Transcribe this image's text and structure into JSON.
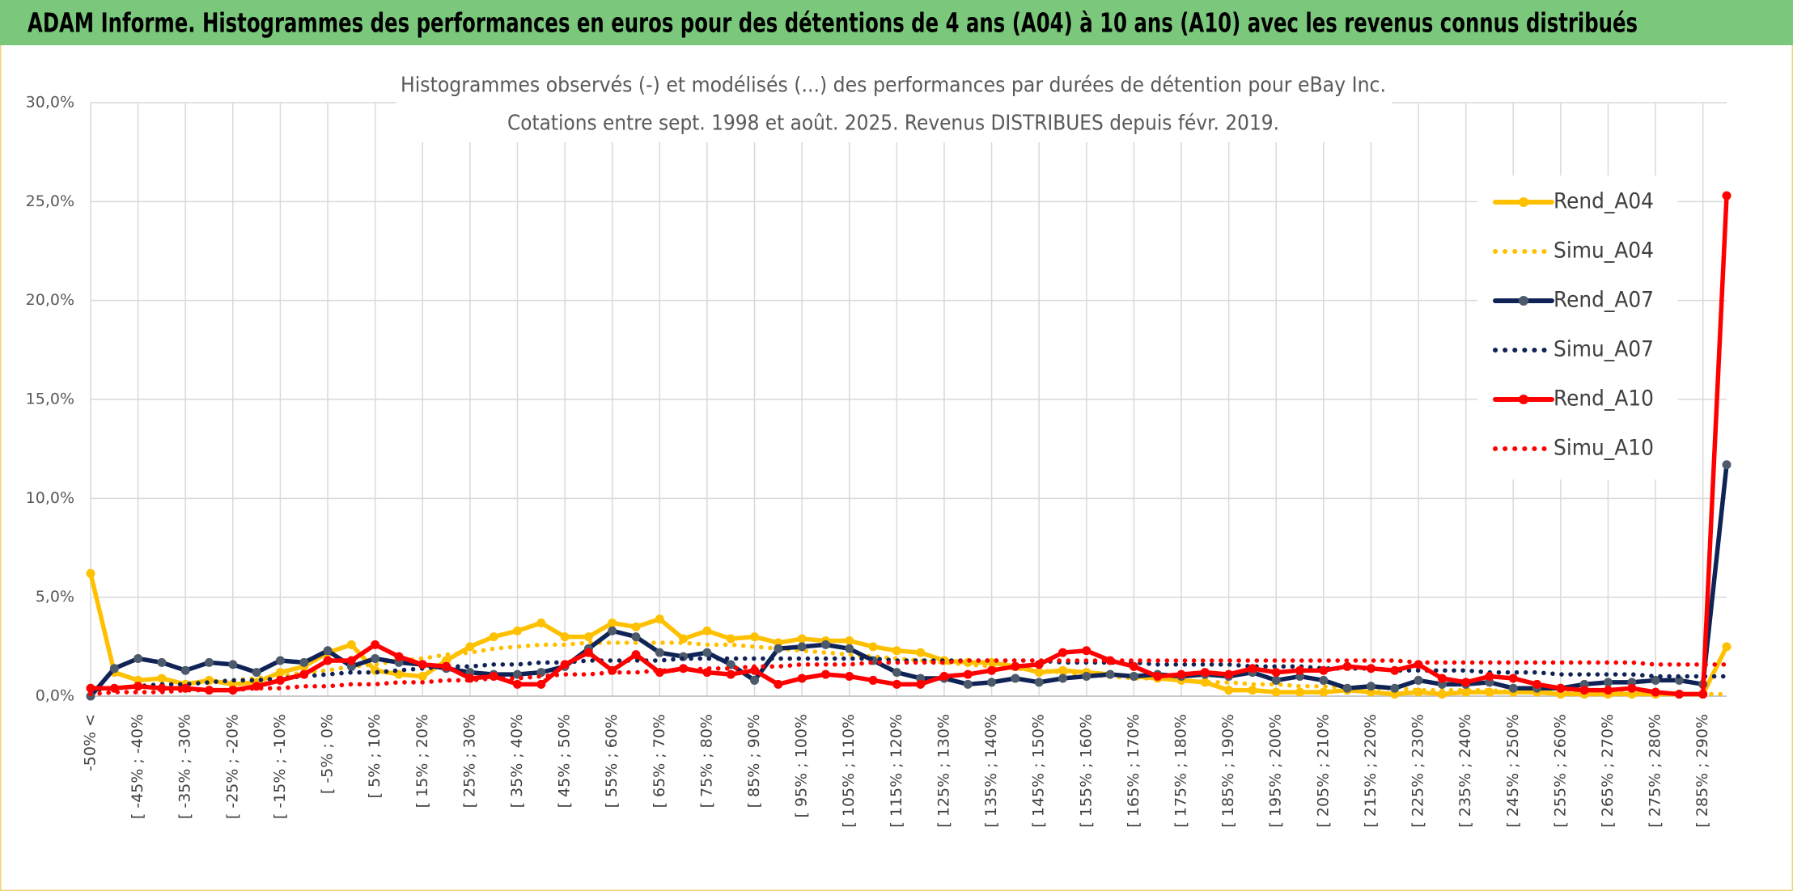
{
  "header": {
    "title": "ADAM Informe. Histogrammes des performances en euros pour des détentions de 4 ans (A04) à 10 ans (A10) avec les revenus connus distribués"
  },
  "chart_data": {
    "type": "line",
    "title": "Histogrammes observés (-) et modélisés (...) des performances par durées de détention pour eBay Inc.",
    "subtitle": "Cotations entre sept. 1998 et août. 2025. Revenus DISTRIBUES depuis févr. 2019.",
    "categories": [
      "-50% <",
      null,
      "[ -45% ; -40%",
      null,
      "[ -35% ; -30%",
      null,
      "[ -25% ; -20%",
      null,
      "[ -15% ; -10%",
      null,
      "[ -5% ; 0%",
      null,
      "[ 5% ; 10%",
      null,
      "[ 15% ; 20%",
      null,
      "[ 25% ; 30%",
      null,
      "[ 35% ; 40%",
      null,
      "[ 45% ; 50%",
      null,
      "[ 55% ; 60%",
      null,
      "[ 65% ; 70%",
      null,
      "[ 75% ; 80%",
      null,
      "[ 85% ; 90%",
      null,
      "[ 95% ; 100%",
      null,
      "[ 105% ; 110%",
      null,
      "[ 115% ; 120%",
      null,
      "[ 125% ; 130%",
      null,
      "[ 135% ; 140%",
      null,
      "[ 145% ; 150%",
      null,
      "[ 155% ; 160%",
      null,
      "[ 165% ; 170%",
      null,
      "[ 175% ; 180%",
      null,
      "[ 185% ; 190%",
      null,
      "[ 195% ; 200%",
      null,
      "[ 205% ; 210%",
      null,
      "[ 215% ; 220%",
      null,
      "[ 225% ; 230%",
      null,
      "[ 235% ; 240%",
      null,
      "[ 245% ; 250%",
      null,
      "[ 255% ; 260%",
      null,
      "[ 265% ; 270%",
      null,
      "[ 275% ; 280%",
      null,
      "[ 285% ; 290%",
      null
    ],
    "series": [
      {
        "name": "Rend_A04",
        "color": "#ffc000",
        "marker_color": "#ffc000",
        "line_style": "solid",
        "marker": true,
        "values": [
          6.2,
          1.2,
          0.8,
          0.9,
          0.6,
          0.8,
          0.6,
          0.7,
          1.2,
          1.5,
          2.2,
          2.6,
          1.3,
          1.1,
          1.0,
          1.8,
          2.5,
          3.0,
          3.3,
          3.7,
          3.0,
          3.0,
          3.7,
          3.5,
          3.9,
          2.9,
          3.3,
          2.9,
          3.0,
          2.7,
          2.9,
          2.8,
          2.8,
          2.5,
          2.3,
          2.2,
          1.8,
          1.7,
          1.7,
          1.5,
          1.2,
          1.3,
          1.2,
          1.1,
          1.0,
          0.9,
          0.8,
          0.7,
          0.3,
          0.3,
          0.2,
          0.2,
          0.2,
          0.3,
          0.2,
          0.1,
          0.2,
          0.1,
          0.2,
          0.2,
          0.2,
          0.2,
          0.1,
          0.1,
          0.1,
          0.1,
          0.1,
          0.1,
          0.1,
          2.5
        ]
      },
      {
        "name": "Simu_A04",
        "color": "#ffc000",
        "line_style": "dotted",
        "marker": false,
        "values": [
          0.3,
          0.4,
          0.5,
          0.6,
          0.6,
          0.7,
          0.8,
          0.9,
          1.0,
          1.2,
          1.3,
          1.5,
          1.6,
          1.8,
          1.9,
          2.1,
          2.2,
          2.4,
          2.5,
          2.6,
          2.6,
          2.7,
          2.7,
          2.7,
          2.7,
          2.7,
          2.6,
          2.6,
          2.5,
          2.4,
          2.3,
          2.2,
          2.1,
          2.0,
          1.9,
          1.8,
          1.7,
          1.6,
          1.5,
          1.4,
          1.3,
          1.2,
          1.1,
          1.0,
          0.9,
          0.9,
          0.8,
          0.7,
          0.7,
          0.6,
          0.6,
          0.5,
          0.5,
          0.4,
          0.4,
          0.4,
          0.3,
          0.3,
          0.3,
          0.3,
          0.2,
          0.2,
          0.2,
          0.2,
          0.2,
          0.2,
          0.1,
          0.1,
          0.1,
          0.1
        ]
      },
      {
        "name": "Rend_A07",
        "color": "#0f2356",
        "marker_color": "#4d5a6b",
        "line_style": "solid",
        "marker": true,
        "values": [
          0.0,
          1.4,
          1.9,
          1.7,
          1.3,
          1.7,
          1.6,
          1.2,
          1.8,
          1.7,
          2.3,
          1.5,
          1.9,
          1.7,
          1.6,
          1.4,
          1.2,
          1.1,
          1.1,
          1.2,
          1.5,
          2.4,
          3.3,
          3.0,
          2.2,
          2.0,
          2.2,
          1.6,
          0.8,
          2.4,
          2.5,
          2.6,
          2.4,
          1.8,
          1.2,
          0.9,
          0.9,
          0.6,
          0.7,
          0.9,
          0.7,
          0.9,
          1.0,
          1.1,
          1.0,
          1.1,
          1.0,
          1.1,
          1.0,
          1.2,
          0.8,
          1.0,
          0.8,
          0.4,
          0.5,
          0.4,
          0.8,
          0.6,
          0.6,
          0.7,
          0.4,
          0.4,
          0.4,
          0.6,
          0.7,
          0.7,
          0.8,
          0.8,
          0.6,
          11.7
        ]
      },
      {
        "name": "Simu_A07",
        "color": "#0f2356",
        "line_style": "dotted",
        "marker": false,
        "values": [
          0.3,
          0.4,
          0.5,
          0.6,
          0.6,
          0.7,
          0.8,
          0.8,
          0.9,
          1.0,
          1.1,
          1.2,
          1.2,
          1.3,
          1.4,
          1.5,
          1.5,
          1.6,
          1.6,
          1.7,
          1.7,
          1.8,
          1.8,
          1.8,
          1.8,
          1.9,
          1.9,
          1.9,
          1.9,
          1.9,
          1.9,
          1.9,
          1.9,
          1.9,
          1.8,
          1.8,
          1.8,
          1.8,
          1.8,
          1.8,
          1.8,
          1.7,
          1.7,
          1.7,
          1.7,
          1.6,
          1.6,
          1.6,
          1.6,
          1.5,
          1.5,
          1.5,
          1.4,
          1.4,
          1.4,
          1.3,
          1.3,
          1.3,
          1.3,
          1.2,
          1.2,
          1.2,
          1.1,
          1.1,
          1.1,
          1.1,
          1.0,
          1.0,
          1.0,
          1.0
        ]
      },
      {
        "name": "Rend_A10",
        "color": "#ff0000",
        "marker_color": "#ff0000",
        "line_style": "solid",
        "marker": true,
        "values": [
          0.4,
          0.4,
          0.5,
          0.4,
          0.4,
          0.3,
          0.3,
          0.5,
          0.8,
          1.1,
          1.8,
          1.8,
          2.6,
          2.0,
          1.6,
          1.5,
          0.9,
          1.0,
          0.6,
          0.6,
          1.6,
          2.2,
          1.3,
          2.1,
          1.2,
          1.4,
          1.2,
          1.1,
          1.3,
          0.6,
          0.9,
          1.1,
          1.0,
          0.8,
          0.6,
          0.6,
          1.0,
          1.1,
          1.3,
          1.5,
          1.6,
          2.2,
          2.3,
          1.8,
          1.5,
          1.0,
          1.1,
          1.2,
          1.1,
          1.4,
          1.2,
          1.3,
          1.3,
          1.5,
          1.4,
          1.3,
          1.6,
          0.9,
          0.7,
          1.0,
          0.9,
          0.6,
          0.4,
          0.3,
          0.3,
          0.4,
          0.2,
          0.1,
          0.1,
          25.3
        ]
      },
      {
        "name": "Simu_A10",
        "color": "#ff0000",
        "line_style": "dotted",
        "marker": false,
        "values": [
          0.1,
          0.2,
          0.2,
          0.2,
          0.3,
          0.3,
          0.3,
          0.4,
          0.4,
          0.5,
          0.5,
          0.6,
          0.6,
          0.7,
          0.7,
          0.8,
          0.8,
          0.9,
          0.9,
          1.0,
          1.1,
          1.1,
          1.2,
          1.2,
          1.3,
          1.3,
          1.4,
          1.4,
          1.5,
          1.5,
          1.6,
          1.6,
          1.6,
          1.7,
          1.7,
          1.7,
          1.7,
          1.8,
          1.8,
          1.8,
          1.8,
          1.8,
          1.8,
          1.8,
          1.8,
          1.8,
          1.8,
          1.8,
          1.8,
          1.8,
          1.8,
          1.8,
          1.8,
          1.8,
          1.8,
          1.8,
          1.7,
          1.7,
          1.7,
          1.7,
          1.7,
          1.7,
          1.7,
          1.7,
          1.7,
          1.7,
          1.6,
          1.6,
          1.6,
          1.6
        ]
      }
    ],
    "ylim": [
      0,
      30
    ],
    "yticks": [
      {
        "value": 0,
        "label": "0,0%"
      },
      {
        "value": 5,
        "label": "5,0%"
      },
      {
        "value": 10,
        "label": "10,0%"
      },
      {
        "value": 15,
        "label": "15,0%"
      },
      {
        "value": 20,
        "label": "20,0%"
      },
      {
        "value": 25,
        "label": "25,0%"
      },
      {
        "value": 30,
        "label": "30,0%"
      }
    ],
    "grid": true,
    "legend": "right"
  }
}
